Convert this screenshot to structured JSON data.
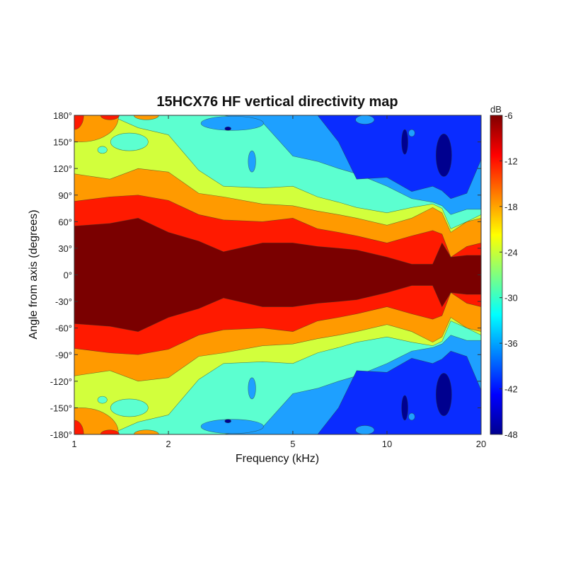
{
  "chart_data": {
    "type": "heatmap",
    "subtype": "filled-contour",
    "title": "15HCX76 HF vertical directivity map",
    "xlabel": "Frequency (kHz)",
    "ylabel": "Angle from axis (degrees)",
    "xscale": "log",
    "xlim": [
      1,
      20
    ],
    "ylim": [
      -180,
      180
    ],
    "x_ticks": [
      "1",
      "2",
      "5",
      "10",
      "20"
    ],
    "x_tick_values": [
      1,
      2,
      5,
      10,
      20
    ],
    "y_ticks": [
      "180°",
      "150°",
      "120°",
      "90°",
      "60°",
      "30°",
      "0°",
      "-30°",
      "-60°",
      "-90°",
      "-120°",
      "-150°",
      "-180°"
    ],
    "y_tick_values": [
      180,
      150,
      120,
      90,
      60,
      30,
      0,
      -30,
      -60,
      -90,
      -120,
      -150,
      -180
    ],
    "colorbar": {
      "label": "dB",
      "range": [
        -48,
        -6
      ],
      "ticks": [
        "-6",
        "-12",
        "-18",
        "-24",
        "-30",
        "-36",
        "-42",
        "-48"
      ],
      "tick_values": [
        -6,
        -12,
        -18,
        -24,
        -30,
        -36,
        -42,
        -48
      ],
      "colormap": "jet"
    },
    "base_band": {
      "range_db": [
        -12,
        -6
      ],
      "color": "#7a0000"
    },
    "frequencies_khz": [
      1,
      1.3,
      1.6,
      2,
      2.5,
      3,
      4,
      5,
      6,
      7,
      8,
      10,
      12,
      14,
      15,
      16,
      18,
      20
    ],
    "contours": [
      {
        "range_db": [
          -18,
          -12
        ],
        "color": "#ff1a00",
        "edge_angle_deg": [
          55,
          58,
          64,
          48,
          38,
          26,
          36,
          36,
          32,
          30,
          28,
          20,
          12,
          12,
          36,
          20,
          22,
          22
        ]
      },
      {
        "range_db": [
          -24,
          -18
        ],
        "color": "#ff9a00",
        "edge_angle_deg": [
          83,
          88,
          90,
          84,
          68,
          62,
          60,
          64,
          52,
          48,
          44,
          36,
          44,
          50,
          46,
          20,
          32,
          36
        ]
      },
      {
        "range_db": [
          -30,
          -24
        ],
        "color": "#d2ff3c",
        "edge_angle_deg": [
          114,
          108,
          120,
          116,
          92,
          88,
          80,
          78,
          72,
          68,
          64,
          56,
          64,
          76,
          70,
          48,
          60,
          64
        ]
      },
      {
        "range_db": [
          -36,
          -30
        ],
        "color": "#5cffd0",
        "edge_angle_deg": [
          180,
          180,
          166,
          158,
          118,
          100,
          98,
          100,
          88,
          82,
          76,
          70,
          76,
          80,
          75,
          52,
          60,
          68
        ]
      },
      {
        "range_db": [
          -42,
          -36
        ],
        "color": "#1ea0ff",
        "edge_angle_deg": [
          180,
          180,
          180,
          180,
          180,
          180,
          172,
          134,
          128,
          120,
          114,
          100,
          86,
          82,
          78,
          68,
          74,
          74
        ]
      },
      {
        "range_db": [
          -45,
          -42
        ],
        "color": "#0a2cff",
        "edge_angle_deg": [
          180,
          180,
          180,
          180,
          180,
          180,
          180,
          180,
          180,
          150,
          108,
          110,
          94,
          100,
          95,
          86,
          92,
          130
        ]
      }
    ],
    "islands": [
      {
        "f_khz": 1.05,
        "angle_deg": 178,
        "span_decades": 0.12,
        "span_deg": 28,
        "color": "#ff9a00"
      },
      {
        "f_khz": 1.0,
        "angle_deg": 180,
        "span_decades": 0.03,
        "span_deg": 16,
        "color": "#ff1a00"
      },
      {
        "f_khz": 1.3,
        "angle_deg": 180,
        "span_decades": 0.03,
        "span_deg": 5,
        "color": "#ff1a00"
      },
      {
        "f_khz": 1.7,
        "angle_deg": 180,
        "span_decades": 0.04,
        "span_deg": 5,
        "color": "#ff9a00"
      },
      {
        "f_khz": 1.5,
        "angle_deg": 150,
        "span_decades": 0.06,
        "span_deg": 10,
        "color": "#5cffd0"
      },
      {
        "f_khz": 1.23,
        "angle_deg": 141,
        "span_decades": 0.015,
        "span_deg": 4,
        "color": "#5cffd0"
      },
      {
        "f_khz": 3.2,
        "angle_deg": 171,
        "span_decades": 0.1,
        "span_deg": 8,
        "color": "#1ea0ff"
      },
      {
        "f_khz": 3.7,
        "angle_deg": 128,
        "span_decades": 0.012,
        "span_deg": 12,
        "color": "#1ea0ff"
      },
      {
        "f_khz": 8.5,
        "angle_deg": 175,
        "span_decades": 0.03,
        "span_deg": 5,
        "color": "#1ea0ff"
      },
      {
        "f_khz": 12,
        "angle_deg": 160,
        "span_decades": 0.01,
        "span_deg": 4,
        "color": "#1ea0ff"
      },
      {
        "f_khz": 11.4,
        "angle_deg": 150,
        "span_decades": 0.01,
        "span_deg": 14,
        "color": "#00008f"
      },
      {
        "f_khz": 15.2,
        "angle_deg": 135,
        "span_decades": 0.025,
        "span_deg": 24,
        "color": "#00008f"
      },
      {
        "f_khz": 3.1,
        "angle_deg": 165,
        "span_decades": 0.01,
        "span_deg": 2,
        "color": "#00008f"
      }
    ],
    "symmetric_about_0deg": true,
    "grid": false
  }
}
